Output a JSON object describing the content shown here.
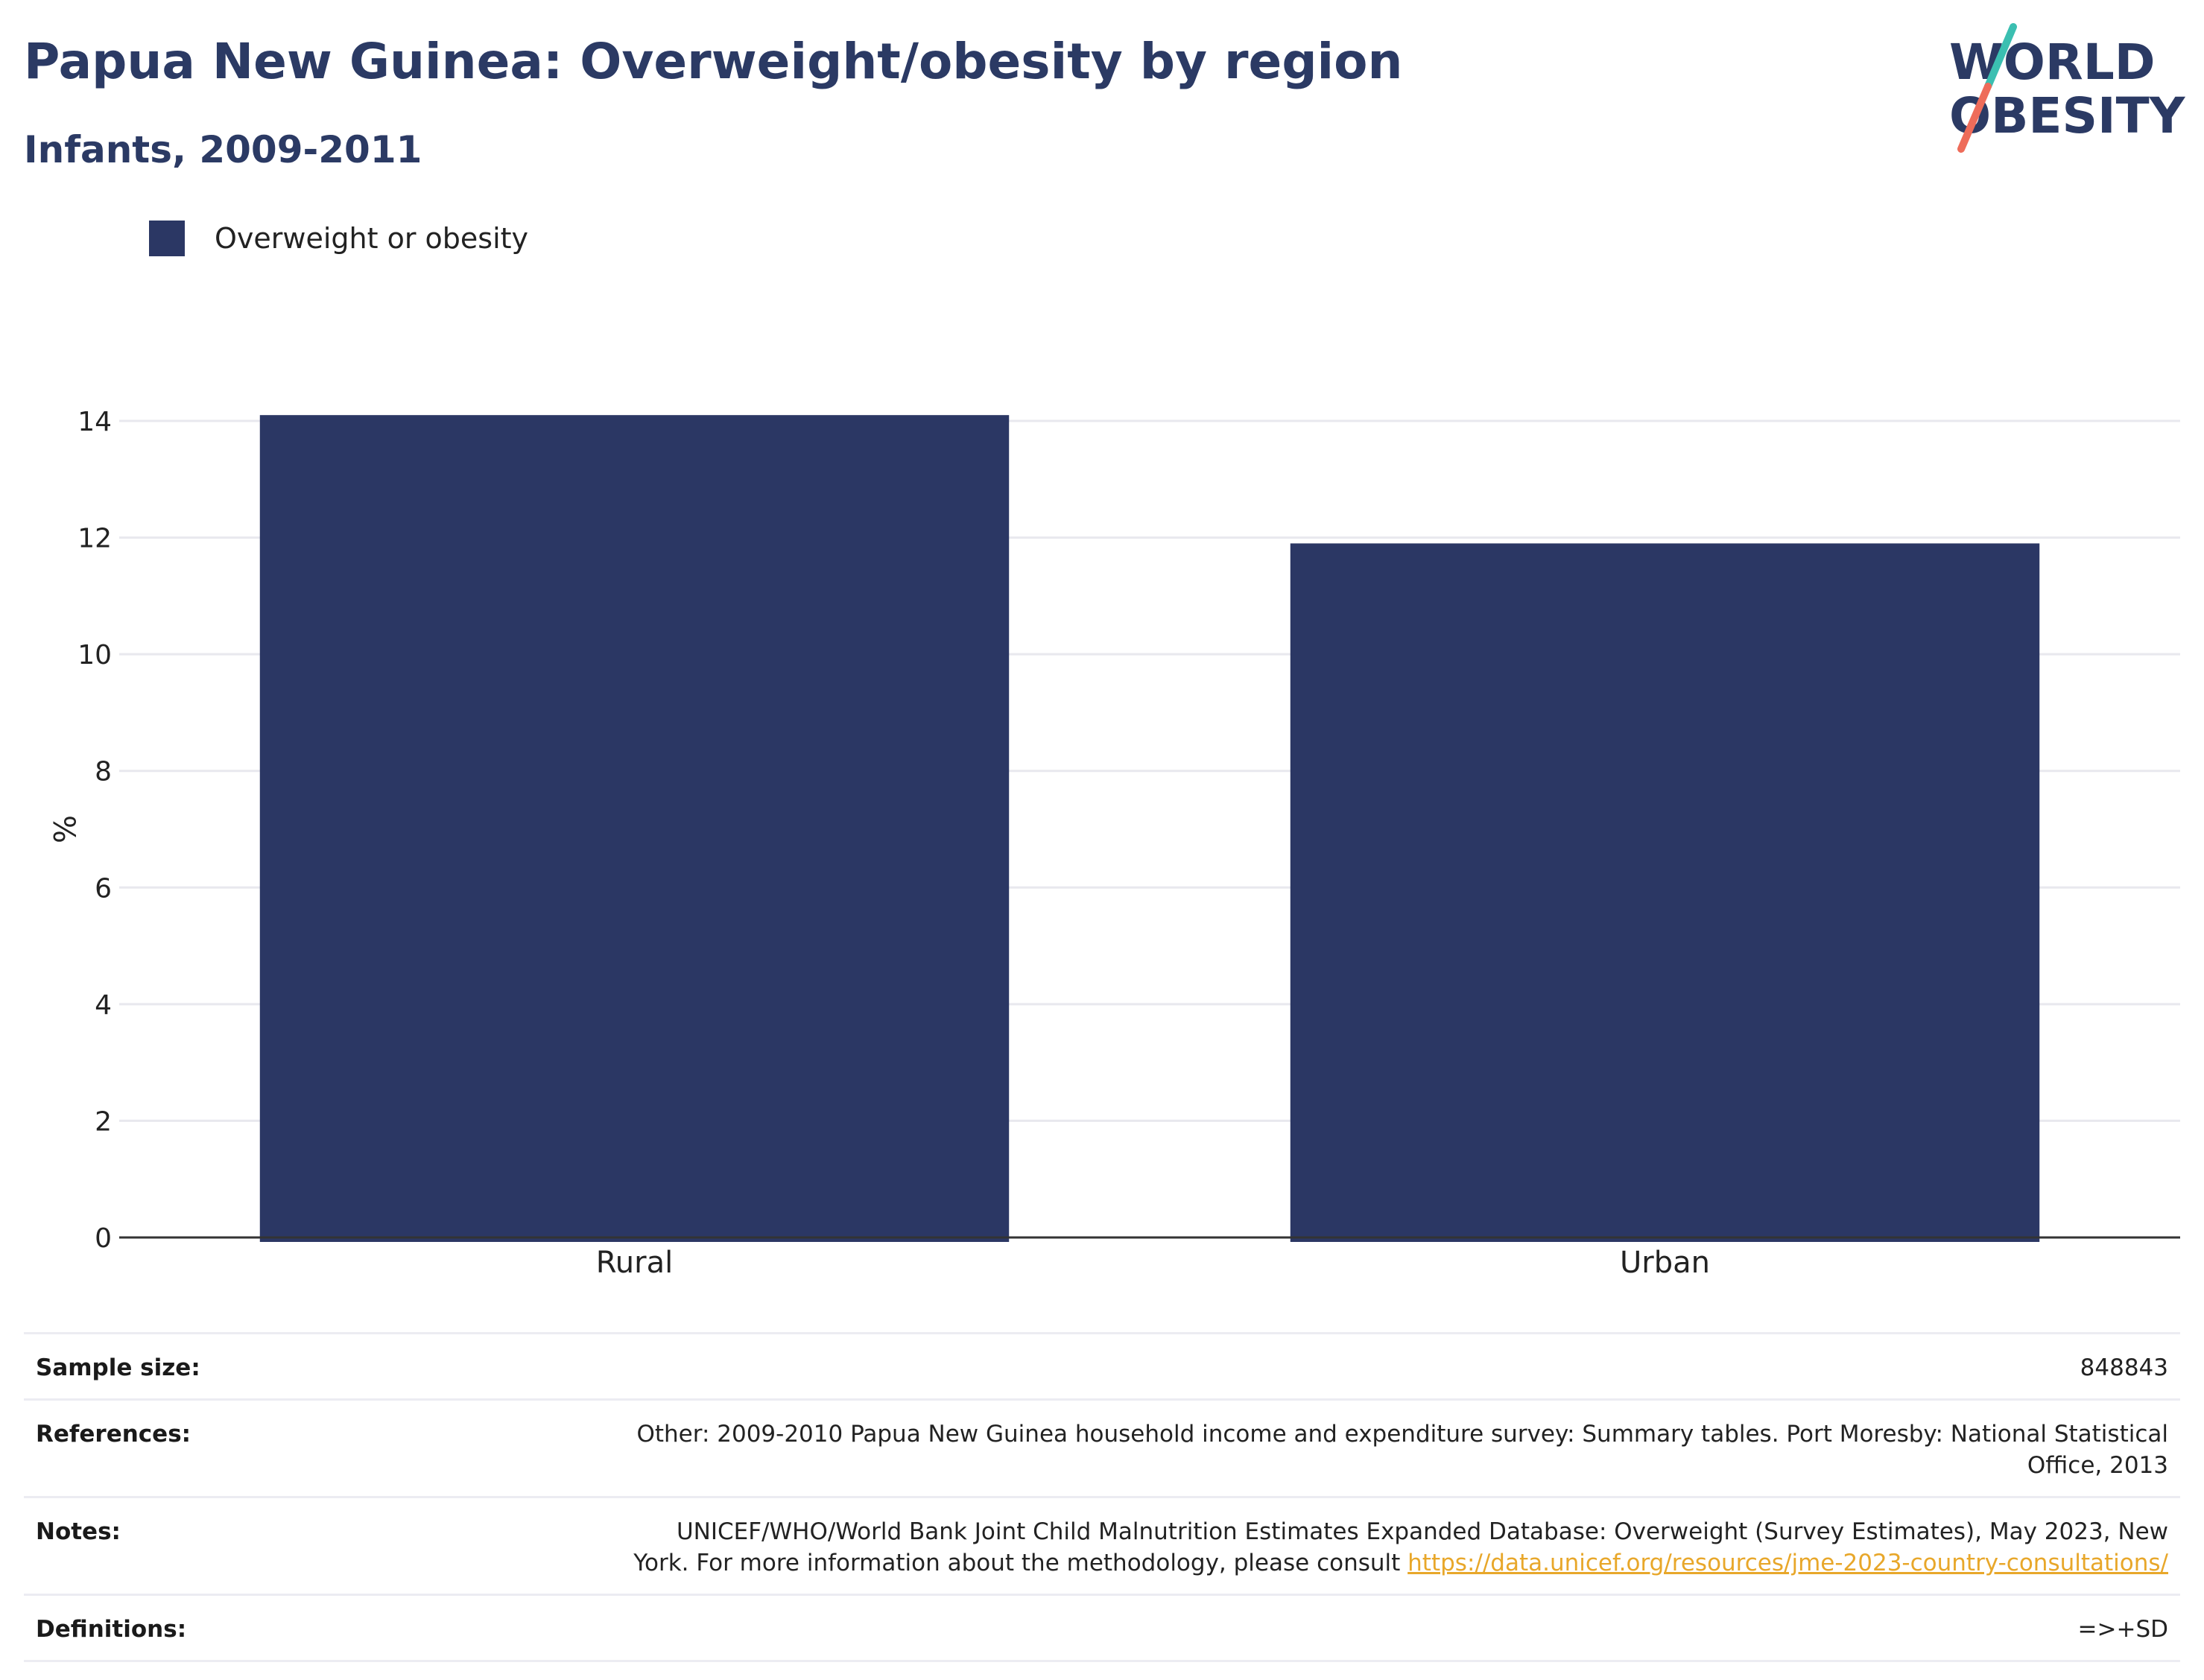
{
  "header": {
    "title": "Papua New Guinea: Overweight/obesity by region",
    "subtitle": "Infants, 2009-2011"
  },
  "logo": {
    "line1": "WORLD",
    "line2": "OBESITY",
    "colors": {
      "navy": "#2b3a64",
      "teal": "#3bbfb1",
      "coral": "#ee6c5a"
    }
  },
  "chart_data": {
    "type": "bar",
    "categories": [
      "Rural",
      "Urban"
    ],
    "series": [
      {
        "name": "Overweight or obesity",
        "values": [
          14.1,
          11.9
        ],
        "color": "#2b3764"
      }
    ],
    "ylabel": "%",
    "xlabel": "",
    "ylim": [
      0,
      14
    ],
    "yticks": [
      0,
      2,
      4,
      6,
      8,
      10,
      12,
      14
    ],
    "grid": true,
    "legend_position": "top-left"
  },
  "info": {
    "sample_size": {
      "label": "Sample size:",
      "value": "848843"
    },
    "references": {
      "label": "References:",
      "value": "Other: 2009-2010 Papua New Guinea household income and expenditure survey: Summary tables. Port Moresby: National Statistical Office, 2013"
    },
    "notes": {
      "label": "Notes:",
      "text": "UNICEF/WHO/World Bank Joint Child Malnutrition Estimates Expanded Database: Overweight (Survey Estimates), May 2023, New York. For more information about the methodology, please consult",
      "link": "https://data.unicef.org/resources/jme-2023-country-consultations/"
    },
    "definitions": {
      "label": "Definitions:",
      "value": "=>+SD"
    }
  }
}
